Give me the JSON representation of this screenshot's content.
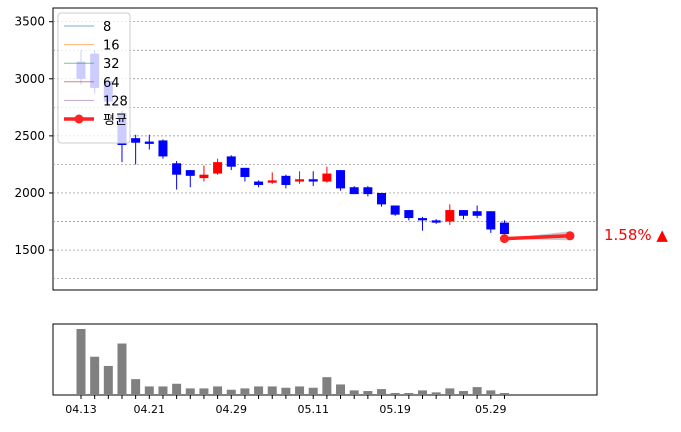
{
  "chart_data": [
    {
      "type": "candlestick",
      "title": "",
      "xlabel": "",
      "ylabel": "",
      "ylim": [
        1150,
        3620
      ],
      "yticks": [
        1500,
        2000,
        2500,
        3000,
        3500
      ],
      "grid": true,
      "grid_lines": [
        1250,
        1500,
        1750,
        2000,
        2250,
        2500,
        2750,
        3000,
        3250,
        3500
      ],
      "legend": {
        "placement": "top-left",
        "entries": [
          {
            "label": "8",
            "color": "#1f77b4"
          },
          {
            "label": "16",
            "color": "#ff7f0e"
          },
          {
            "label": "32",
            "color": "#2ca02c"
          },
          {
            "label": "64",
            "color": "#d62728"
          },
          {
            "label": "128",
            "color": "#9467bd"
          },
          {
            "label": "평균",
            "color": "#ff2222"
          }
        ]
      },
      "colors": {
        "up": "#ff0000",
        "down": "#0000ff",
        "average": "#ff2222",
        "band": "#888888"
      },
      "candles": [
        {
          "o": 3150,
          "h": 3250,
          "l": 2950,
          "c": 3000
        },
        {
          "o": 3220,
          "h": 3250,
          "l": 2870,
          "c": 2920
        },
        {
          "o": 2980,
          "h": 3000,
          "l": 2770,
          "c": 2800
        },
        {
          "o": 2700,
          "h": 2720,
          "l": 2270,
          "c": 2420
        },
        {
          "o": 2480,
          "h": 2510,
          "l": 2250,
          "c": 2440
        },
        {
          "o": 2450,
          "h": 2510,
          "l": 2380,
          "c": 2430
        },
        {
          "o": 2460,
          "h": 2470,
          "l": 2300,
          "c": 2320
        },
        {
          "o": 2260,
          "h": 2280,
          "l": 2030,
          "c": 2160
        },
        {
          "o": 2200,
          "h": 2200,
          "l": 2050,
          "c": 2150
        },
        {
          "o": 2130,
          "h": 2240,
          "l": 2100,
          "c": 2160
        },
        {
          "o": 2170,
          "h": 2300,
          "l": 2160,
          "c": 2270
        },
        {
          "o": 2320,
          "h": 2330,
          "l": 2200,
          "c": 2230
        },
        {
          "o": 2220,
          "h": 2220,
          "l": 2100,
          "c": 2140
        },
        {
          "o": 2100,
          "h": 2110,
          "l": 2050,
          "c": 2070
        },
        {
          "o": 2090,
          "h": 2180,
          "l": 2080,
          "c": 2110
        },
        {
          "o": 2150,
          "h": 2160,
          "l": 2040,
          "c": 2070
        },
        {
          "o": 2100,
          "h": 2190,
          "l": 2080,
          "c": 2120
        },
        {
          "o": 2120,
          "h": 2190,
          "l": 2060,
          "c": 2100
        },
        {
          "o": 2100,
          "h": 2230,
          "l": 2090,
          "c": 2170
        },
        {
          "o": 2200,
          "h": 2200,
          "l": 2020,
          "c": 2040
        },
        {
          "o": 2050,
          "h": 2060,
          "l": 1990,
          "c": 1990
        },
        {
          "o": 2050,
          "h": 2060,
          "l": 1970,
          "c": 1990
        },
        {
          "o": 2000,
          "h": 2000,
          "l": 1880,
          "c": 1900
        },
        {
          "o": 1890,
          "h": 1890,
          "l": 1800,
          "c": 1810
        },
        {
          "o": 1850,
          "h": 1850,
          "l": 1760,
          "c": 1780
        },
        {
          "o": 1780,
          "h": 1790,
          "l": 1670,
          "c": 1760
        },
        {
          "o": 1760,
          "h": 1770,
          "l": 1730,
          "c": 1740
        },
        {
          "o": 1750,
          "h": 1900,
          "l": 1720,
          "c": 1850
        },
        {
          "o": 1850,
          "h": 1850,
          "l": 1770,
          "c": 1800
        },
        {
          "o": 1840,
          "h": 1890,
          "l": 1780,
          "c": 1800
        },
        {
          "o": 1840,
          "h": 1840,
          "l": 1650,
          "c": 1680
        },
        {
          "o": 1740,
          "h": 1760,
          "l": 1590,
          "c": 1640
        }
      ],
      "volume": [
        1.0,
        0.58,
        0.44,
        0.78,
        0.24,
        0.13,
        0.13,
        0.17,
        0.1,
        0.1,
        0.13,
        0.08,
        0.1,
        0.13,
        0.13,
        0.11,
        0.13,
        0.11,
        0.27,
        0.16,
        0.07,
        0.06,
        0.09,
        0.03,
        0.03,
        0.07,
        0.04,
        0.1,
        0.06,
        0.12,
        0.07,
        0.03
      ],
      "volume_tick_labels": [
        "04.13",
        "04.21",
        "04.29",
        "05.11",
        "05.19",
        "05.29"
      ],
      "volume_tick_positions": [
        0,
        5,
        11,
        17,
        23,
        30
      ],
      "forecast": {
        "start_value": 1600,
        "end_value": 1625,
        "band_upper_end": 1665,
        "band_lower_end": 1585,
        "label": "1.58% ▲",
        "label_color": "#ff0000"
      }
    }
  ]
}
